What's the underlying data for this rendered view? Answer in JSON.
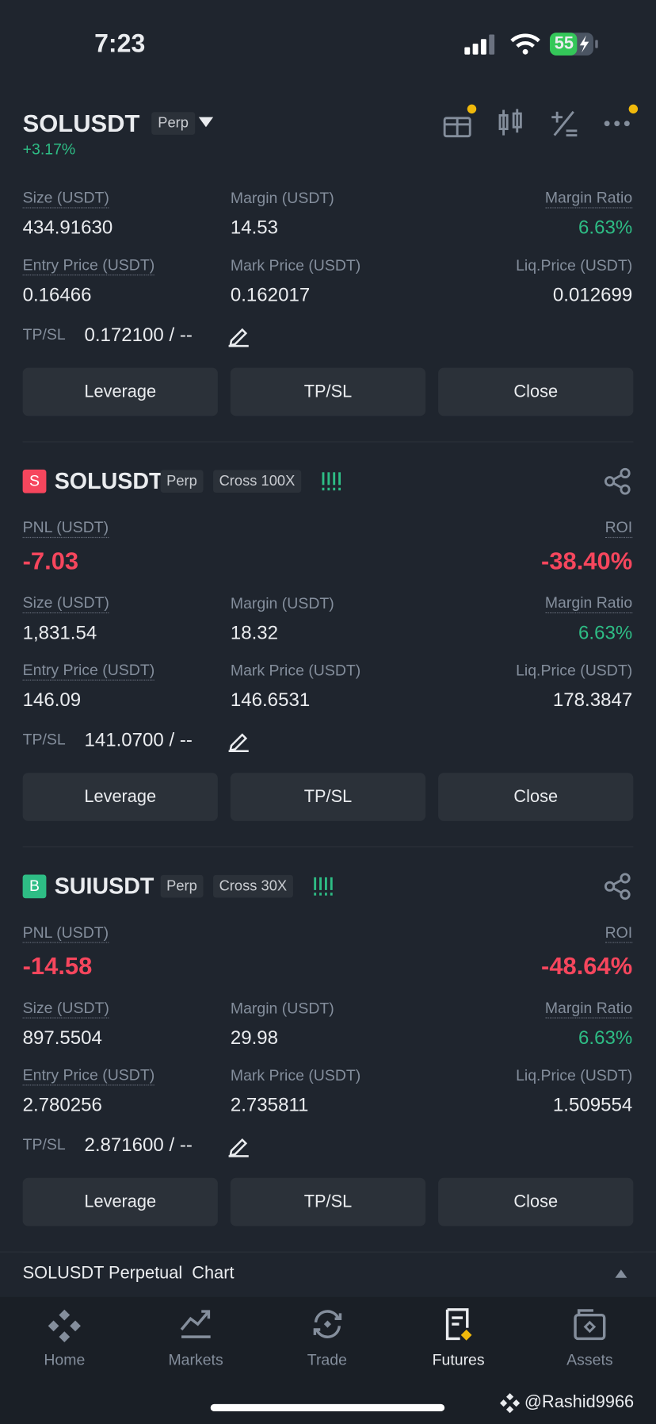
{
  "status_bar": {
    "time": "7:23",
    "battery": "55"
  },
  "header": {
    "symbol": "SOLUSDT",
    "contract": "Perp",
    "change": "+3.17%"
  },
  "labels": {
    "pnl": "PNL (USDT)",
    "roi": "ROI",
    "size": "Size (USDT)",
    "margin": "Margin (USDT)",
    "margin_ratio": "Margin Ratio",
    "entry": "Entry Price (USDT)",
    "mark": "Mark Price (USDT)",
    "liq": "Liq.Price (USDT)",
    "tpsl": "TP/SL"
  },
  "buttons": [
    "Leverage",
    "TP/SL",
    "Close"
  ],
  "positions": [
    {
      "size": "434.91630",
      "margin": "14.53",
      "margin_ratio": "6.63%",
      "entry": "0.16466",
      "mark": "0.162017",
      "liq": "0.012699",
      "tpsl": "0.172100 / --"
    },
    {
      "side": "S",
      "symbol": "SOLUSDT",
      "contract": "Perp",
      "mode": "Cross 100X",
      "pnl": "-7.03",
      "roi": "-38.40%",
      "size": "1,831.54",
      "margin": "18.32",
      "margin_ratio": "6.63%",
      "entry": "146.09",
      "mark": "146.6531",
      "liq": "178.3847",
      "tpsl": "141.0700 / --"
    },
    {
      "side": "B",
      "symbol": "SUIUSDT",
      "contract": "Perp",
      "mode": "Cross 30X",
      "pnl": "-14.58",
      "roi": "-48.64%",
      "size": "897.5504",
      "margin": "29.98",
      "margin_ratio": "6.63%",
      "entry": "2.780256",
      "mark": "2.735811",
      "liq": "1.509554",
      "tpsl": "2.871600 / --"
    }
  ],
  "chart_bar": "SOLUSDT Perpetual  Chart",
  "nav": [
    "Home",
    "Markets",
    "Trade",
    "Futures",
    "Assets"
  ],
  "watermark": "@Rashid9966"
}
